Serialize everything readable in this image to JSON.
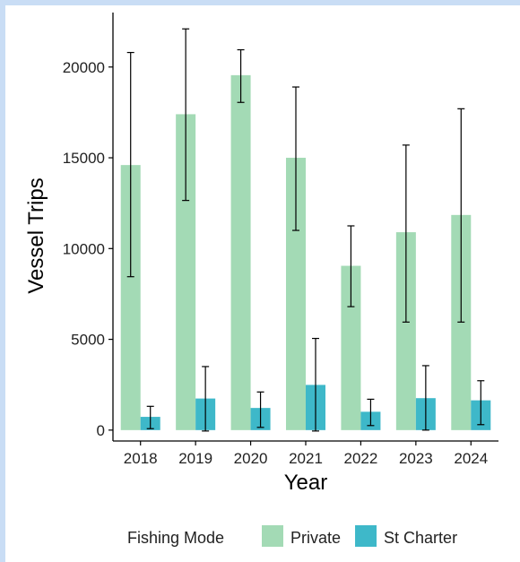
{
  "chart_data": {
    "type": "bar",
    "xlabel": "Year",
    "ylabel": "Vessel Trips",
    "categories": [
      "2018",
      "2019",
      "2020",
      "2021",
      "2022",
      "2023",
      "2024"
    ],
    "ylim": [
      -600,
      23000
    ],
    "yticks": [
      0,
      5000,
      10000,
      15000,
      20000
    ],
    "grid": false,
    "legend": {
      "title": "Fishing Mode",
      "position": "bottom"
    },
    "series": [
      {
        "name": "Private",
        "color": "#a3dab5",
        "values": [
          14600,
          17400,
          19550,
          15000,
          9050,
          10900,
          11850
        ],
        "error_low": [
          8450,
          12650,
          18050,
          11000,
          6800,
          5950,
          5950
        ],
        "error_high": [
          20800,
          22100,
          20950,
          18900,
          11250,
          15700,
          17700
        ]
      },
      {
        "name": "St Charter",
        "color": "#3eb8c9",
        "values": [
          730,
          1740,
          1220,
          2490,
          1010,
          1760,
          1640
        ],
        "error_low": [
          80,
          -50,
          150,
          -50,
          250,
          0,
          300
        ],
        "error_high": [
          1310,
          3500,
          2100,
          5050,
          1700,
          3550,
          2720
        ]
      }
    ]
  }
}
